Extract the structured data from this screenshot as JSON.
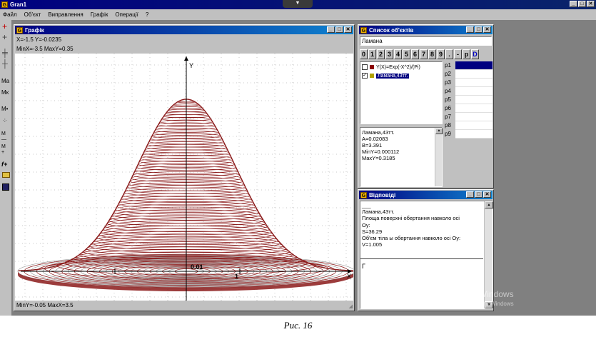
{
  "app": {
    "title": "Gran1",
    "dropdown_glyph": "▼"
  },
  "menu": [
    "Файл",
    "Об'єкт",
    "Виправлення",
    "Графік",
    "Операції",
    "?"
  ],
  "window_buttons": {
    "minimize": "_",
    "maximize": "□",
    "close": "✕"
  },
  "toolbar": {
    "icons": [
      "plus-red-icon",
      "plus-icon",
      "cross-line-icon",
      "cross-hairs-icon",
      "label-ma-icon",
      "label-mk-icon",
      "m-dot-icon",
      "points-icon",
      "m-minus-icon",
      "m-plus-icon",
      "function-plus-icon",
      "open-folder-icon",
      "save-disk-icon"
    ],
    "labels": {
      "ma": "Ma",
      "mk": "Mк",
      "mdot": "M•",
      "mminus": "M",
      "mplus": "M",
      "fplus": "f+"
    }
  },
  "graph_window": {
    "title": "Графік",
    "coords_readout": "X=-1.5  Y=-0.0235",
    "range_top": "MinX=-3.5  MaxY=0.35",
    "range_bottom": "MinY=-0.05  MaxX=3.5",
    "axis_y_label": "Y",
    "axis_x_label": "X",
    "tick_label_center": "0.01",
    "tick_label_x": "1",
    "curve_color": "#8b1a1a",
    "ellipse_color": "#9a9a9a"
  },
  "objects_window": {
    "title": "Список об'єктів",
    "name_field": "Ламана",
    "digit_buttons": [
      "0",
      "1",
      "2",
      "3",
      "4",
      "5",
      "6",
      "7",
      "8",
      "9",
      ".",
      "-",
      "p",
      "D"
    ],
    "objects": [
      {
        "checked": false,
        "color": "#8b0000",
        "label": "Y(X)=Exp(-X^2)/(Pi)"
      },
      {
        "checked": true,
        "color": "#b0a000",
        "label": "Ламана,43тт."
      }
    ],
    "params": [
      "p1",
      "p2",
      "p3",
      "p4",
      "p5",
      "p6",
      "p7",
      "p8",
      "p9"
    ],
    "info_lines": [
      "Ламана,43тт.",
      "A=0.02083",
      "B=3.391",
      "MinY=0.000112",
      "MaxY=0.3185"
    ]
  },
  "answers_window": {
    "title": "Відповіді",
    "lines": [
      "___",
      "Ламана,43тт.",
      "Площа поверхні обертання навколо осі",
      "Oy:",
      "S=36.29",
      "Об'єм тіла ы обертання навколо осі Oy:",
      "V=1.005"
    ],
    "input_value": "Г"
  },
  "watermark": {
    "line1": "Активация Windows",
    "line2": "Чтобы активировать Windows"
  },
  "caption": "Рис. 16",
  "colors": {
    "title_bar": "#000080",
    "face": "#c0c0c0",
    "desktop": "#808080",
    "accent_red": "#8b1a1a"
  }
}
